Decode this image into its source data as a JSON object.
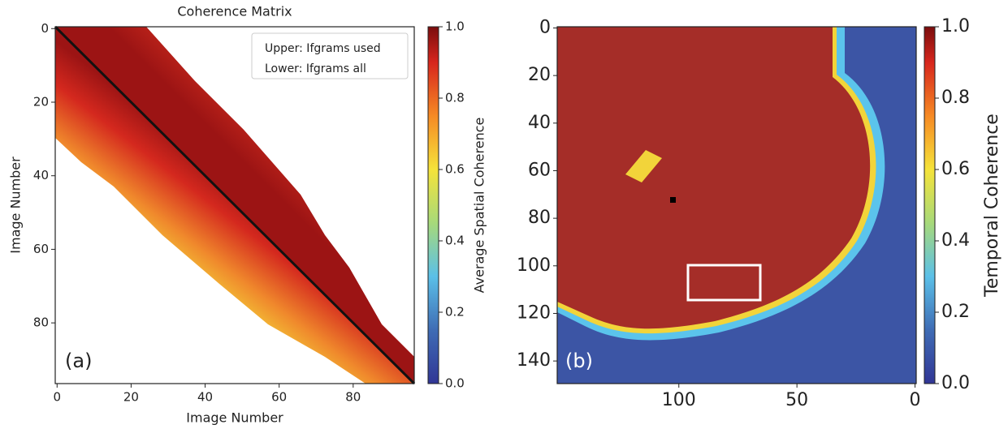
{
  "chart_data": [
    {
      "type": "heatmap",
      "title": "Coherence Matrix",
      "x_label": "Image Number",
      "y_label": "Image Number",
      "xlim": [
        -0.5,
        96.5
      ],
      "ylim": [
        96.5,
        -0.5
      ],
      "xticks": [
        0,
        20,
        40,
        60,
        80
      ],
      "yticks": [
        0,
        20,
        40,
        60,
        80
      ],
      "colorbar": {
        "label": "Average Spatial Coherence",
        "lim": [
          0,
          1
        ],
        "ticks": [
          {
            "value": 0,
            "label": "0.0"
          },
          0.2,
          0.4,
          0.6,
          0.8,
          {
            "value": 1,
            "label": "1.0"
          }
        ]
      },
      "legend_entries": [
        "Upper: Ifgrams used",
        "Lower: Ifgrams all"
      ],
      "annotation": "(a)"
    },
    {
      "type": "heatmap",
      "xlim": [
        151.5,
        -0.5
      ],
      "ylim": [
        149.5,
        -0.5
      ],
      "xticks": [
        100,
        50,
        0
      ],
      "yticks": [
        0,
        20,
        40,
        60,
        80,
        100,
        120,
        140
      ],
      "colorbar": {
        "label": "Temporal Coherence",
        "lim": [
          0,
          1
        ],
        "ticks": [
          {
            "value": 0,
            "label": "0.0"
          },
          0.2,
          0.4,
          0.6,
          0.8,
          {
            "value": 1,
            "label": "1.0"
          }
        ]
      },
      "annotation": "(b)"
    }
  ]
}
